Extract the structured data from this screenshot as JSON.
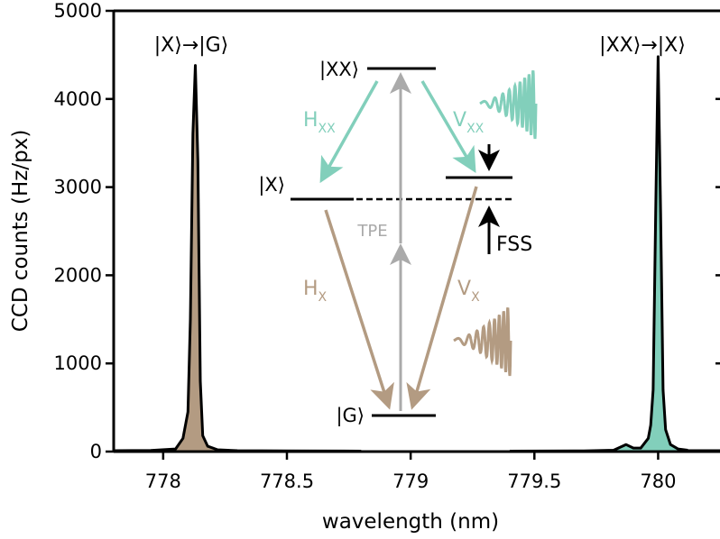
{
  "chart_data": {
    "type": "line",
    "xlabel": "wavelength (nm)",
    "ylabel": "CCD counts (Hz/px)",
    "xlim": [
      777.8,
      780.25
    ],
    "ylim": [
      0,
      5000
    ],
    "x_ticks": [
      778,
      778.5,
      779,
      779.5,
      780
    ],
    "x_tick_labels": [
      "778",
      "778.5",
      "779",
      "779.5",
      "780"
    ],
    "y_ticks": [
      0,
      1000,
      2000,
      3000,
      4000,
      5000
    ],
    "y_tick_labels": [
      "0",
      "1000",
      "2000",
      "3000",
      "4000",
      "5000"
    ],
    "grid": false,
    "series": [
      {
        "name": "|X⟩→|G⟩",
        "color": "#b39b82",
        "x": [
          777.8,
          777.95,
          778.05,
          778.08,
          778.1,
          778.11,
          778.12,
          778.13,
          778.14,
          778.15,
          778.16,
          778.18,
          778.22,
          778.3,
          778.5,
          778.8
        ],
        "y": [
          10,
          12,
          30,
          150,
          450,
          1500,
          3600,
          4380,
          3300,
          800,
          180,
          60,
          20,
          10,
          8,
          5
        ]
      },
      {
        "name": "|XX⟩→|X⟩",
        "color": "#82cfbb",
        "x": [
          779.4,
          779.7,
          779.82,
          779.87,
          779.9,
          779.93,
          779.96,
          779.97,
          779.98,
          779.99,
          780.0,
          780.01,
          780.02,
          780.03,
          780.05,
          780.08,
          780.12,
          780.25
        ],
        "y": [
          5,
          8,
          15,
          80,
          40,
          40,
          150,
          300,
          700,
          2700,
          4480,
          2700,
          700,
          250,
          80,
          30,
          15,
          10
        ]
      }
    ],
    "peak_labels": [
      "|X⟩→|G⟩",
      "|XX⟩→|X⟩"
    ],
    "inset_diagram": {
      "levels": [
        "|XX⟩",
        "|X⟩",
        "|G⟩"
      ],
      "transitions": [
        {
          "main": "H",
          "sub": "XX",
          "color": "#82cfbb"
        },
        {
          "main": "V",
          "sub": "XX",
          "color": "#82cfbb"
        },
        {
          "main": "H",
          "sub": "X",
          "color": "#b39b82"
        },
        {
          "main": "V",
          "sub": "X",
          "color": "#b39b82"
        }
      ],
      "tpe_label": "TPE",
      "tpe_color": "#aaaaaa",
      "fss_label": "FSS"
    }
  }
}
